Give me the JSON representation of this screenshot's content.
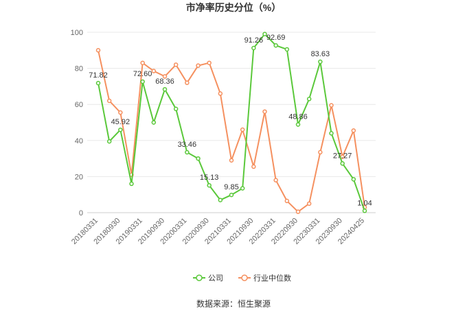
{
  "chart_data": {
    "type": "line",
    "title": "市净率历史分位（%）",
    "categories": [
      "20180331",
      null,
      "20180930",
      null,
      "20190331",
      null,
      "20190930",
      null,
      "20200331",
      null,
      "20200930",
      null,
      "20210331",
      null,
      "20210930",
      null,
      "20220331",
      null,
      "20220930",
      null,
      "20230331",
      null,
      "20230930",
      null,
      "20240425"
    ],
    "series": [
      {
        "name": "公司",
        "color": "#5ac83a",
        "values": [
          71.82,
          39.5,
          45.92,
          16,
          72.6,
          50,
          68.36,
          57.5,
          33.46,
          30,
          15.13,
          7,
          9.85,
          13.5,
          91.26,
          99,
          92.69,
          90.5,
          48.86,
          63,
          83.63,
          44,
          27.27,
          18.5,
          1.04
        ],
        "value_labels": [
          "71.82",
          null,
          "45.92",
          null,
          "72.60",
          null,
          "68.36",
          null,
          "33.46",
          null,
          "15.13",
          null,
          "9.85",
          null,
          "91.26",
          null,
          "92.69",
          null,
          "48.86",
          null,
          "83.63",
          null,
          "27.27",
          null,
          "1.04"
        ]
      },
      {
        "name": "行业中位数",
        "color": "#f5905f",
        "values": [
          90,
          62,
          55.5,
          21,
          83,
          78.5,
          75.5,
          82,
          72,
          81.5,
          83,
          66,
          29,
          46,
          25.5,
          56,
          18,
          6.5,
          0.5,
          5,
          33.5,
          59.5,
          31,
          45.5,
          3
        ]
      }
    ],
    "ylim": [
      0,
      100
    ],
    "yticks": [
      0,
      20,
      40,
      60,
      80,
      100
    ],
    "grid": true,
    "legend": "bottom",
    "source": "数据来源：恒生聚源"
  }
}
